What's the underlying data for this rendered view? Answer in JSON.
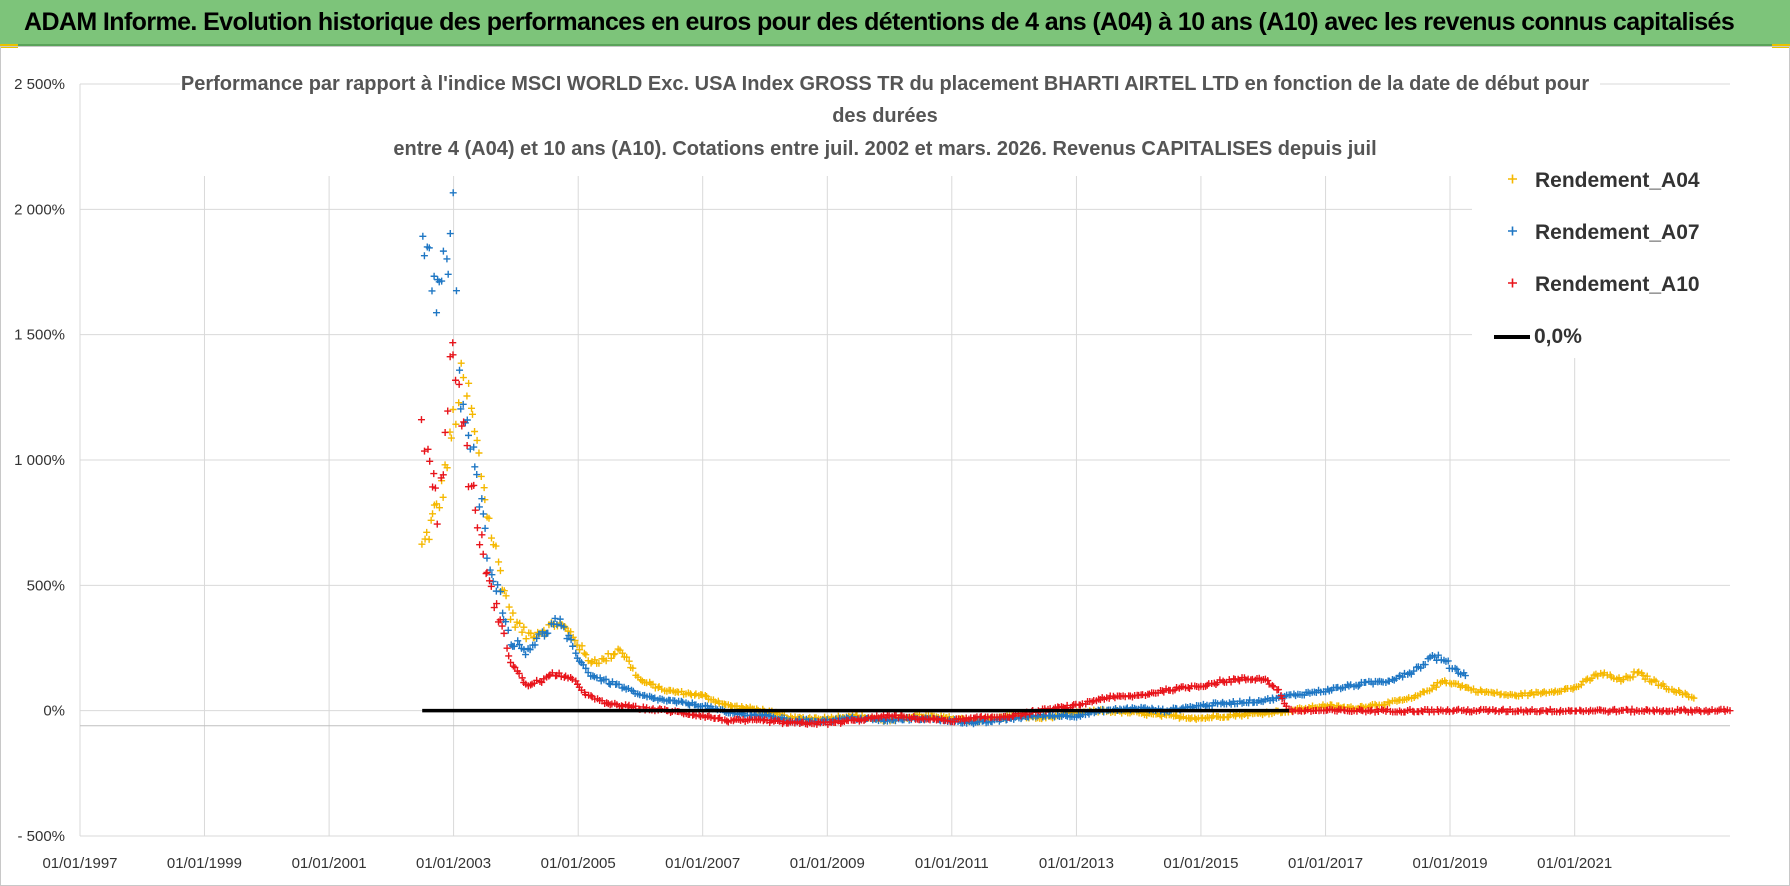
{
  "header": {
    "title": "ADAM Informe. Evolution historique des performances en euros pour des détentions de 4 ans (A04) à 10 ans (A10) avec les revenus connus capitalisés"
  },
  "chart_data": {
    "type": "scatter",
    "title_lines": [
      "Performance par rapport à l'indice MSCI WORLD Exc. USA Index GROSS TR  du placement BHARTI AIRTEL LTD en fonction de la date de début pour",
      "des durées",
      "entre 4 (A04) et 10 ans (A10).  Cotations entre juil. 2002 et mars. 2026. Revenus CAPITALISES depuis juil"
    ],
    "x_tick_labels": [
      "01/01/1997",
      "01/01/1999",
      "01/01/2001",
      "01/01/2003",
      "01/01/2005",
      "01/01/2007",
      "01/01/2009",
      "01/01/2011",
      "01/01/2013",
      "01/01/2015",
      "01/01/2017",
      "01/01/2019",
      "01/01/2021"
    ],
    "x_range": [
      "1997-01-01",
      "2023-07-01"
    ],
    "y_tick_labels": [
      "2 500%",
      "2 000%",
      "1 500%",
      "1 000%",
      "500%",
      "0%",
      "- 500%"
    ],
    "y_range": [
      -500,
      2500
    ],
    "grid": "vertical and horizontal",
    "legend_position": "top-right",
    "series": [
      {
        "name": "Rendement_A04",
        "color": "#f5b800",
        "points": [
          [
            "2002-07-01",
            650
          ],
          [
            "2002-09-01",
            760
          ],
          [
            "2002-11-01",
            900
          ],
          [
            "2003-01-01",
            1150
          ],
          [
            "2003-02-15",
            1300
          ],
          [
            "2003-04-01",
            1250
          ],
          [
            "2003-06-01",
            1000
          ],
          [
            "2003-08-01",
            750
          ],
          [
            "2003-10-01",
            550
          ],
          [
            "2003-12-01",
            380
          ],
          [
            "2004-03-01",
            300
          ],
          [
            "2004-06-01",
            320
          ],
          [
            "2004-09-01",
            350
          ],
          [
            "2004-12-01",
            300
          ],
          [
            "2005-03-01",
            200
          ],
          [
            "2005-06-01",
            200
          ],
          [
            "2005-09-01",
            250
          ],
          [
            "2006-01-01",
            120
          ],
          [
            "2006-06-01",
            80
          ],
          [
            "2007-01-01",
            60
          ],
          [
            "2007-06-01",
            20
          ],
          [
            "2008-01-01",
            0
          ],
          [
            "2008-06-01",
            -30
          ],
          [
            "2009-01-01",
            -30
          ],
          [
            "2009-06-01",
            -20
          ],
          [
            "2010-01-01",
            -40
          ],
          [
            "2010-06-01",
            -20
          ],
          [
            "2011-01-01",
            -30
          ],
          [
            "2011-06-01",
            -40
          ],
          [
            "2012-01-01",
            -20
          ],
          [
            "2012-06-01",
            -30
          ],
          [
            "2013-01-01",
            -10
          ],
          [
            "2013-06-01",
            0
          ],
          [
            "2014-01-01",
            -10
          ],
          [
            "2014-06-01",
            -20
          ],
          [
            "2015-01-01",
            -30
          ],
          [
            "2015-06-01",
            -20
          ],
          [
            "2016-01-01",
            -10
          ],
          [
            "2016-06-01",
            0
          ],
          [
            "2017-01-01",
            20
          ],
          [
            "2017-06-01",
            10
          ],
          [
            "2018-01-01",
            30
          ],
          [
            "2018-06-01",
            50
          ],
          [
            "2018-12-01",
            120
          ],
          [
            "2019-06-01",
            80
          ],
          [
            "2020-01-01",
            60
          ],
          [
            "2020-06-01",
            70
          ],
          [
            "2021-01-01",
            90
          ],
          [
            "2021-06-01",
            150
          ],
          [
            "2021-10-01",
            120
          ],
          [
            "2022-01-01",
            150
          ],
          [
            "2022-06-01",
            100
          ],
          [
            "2022-12-01",
            50
          ]
        ]
      },
      {
        "name": "Rendement_A07",
        "color": "#1f77c4",
        "points": [
          [
            "2002-07-01",
            1950
          ],
          [
            "2002-08-15",
            1800
          ],
          [
            "2002-10-01",
            1650
          ],
          [
            "2002-12-01",
            1800
          ],
          [
            "2003-01-01",
            1950
          ],
          [
            "2003-02-01",
            1300
          ],
          [
            "2003-04-01",
            1100
          ],
          [
            "2003-06-01",
            850
          ],
          [
            "2003-08-01",
            600
          ],
          [
            "2003-10-01",
            450
          ],
          [
            "2003-12-01",
            280
          ],
          [
            "2004-03-01",
            240
          ],
          [
            "2004-06-01",
            300
          ],
          [
            "2004-09-01",
            360
          ],
          [
            "2004-12-01",
            250
          ],
          [
            "2005-03-01",
            150
          ],
          [
            "2005-06-01",
            120
          ],
          [
            "2005-09-01",
            100
          ],
          [
            "2006-01-01",
            60
          ],
          [
            "2006-06-01",
            40
          ],
          [
            "2007-01-01",
            20
          ],
          [
            "2007-06-01",
            -10
          ],
          [
            "2008-01-01",
            -20
          ],
          [
            "2008-06-01",
            -40
          ],
          [
            "2009-01-01",
            -40
          ],
          [
            "2009-06-01",
            -30
          ],
          [
            "2010-01-01",
            -40
          ],
          [
            "2010-06-01",
            -30
          ],
          [
            "2011-01-01",
            -40
          ],
          [
            "2011-06-01",
            -50
          ],
          [
            "2012-01-01",
            -30
          ],
          [
            "2012-06-01",
            -20
          ],
          [
            "2013-01-01",
            -20
          ],
          [
            "2013-06-01",
            0
          ],
          [
            "2014-01-01",
            10
          ],
          [
            "2014-06-01",
            0
          ],
          [
            "2015-01-01",
            20
          ],
          [
            "2015-06-01",
            30
          ],
          [
            "2016-01-01",
            40
          ],
          [
            "2016-06-01",
            60
          ],
          [
            "2017-01-01",
            80
          ],
          [
            "2017-06-01",
            100
          ],
          [
            "2018-01-01",
            120
          ],
          [
            "2018-06-01",
            160
          ],
          [
            "2018-10-01",
            220
          ],
          [
            "2019-01-01",
            180
          ],
          [
            "2019-04-01",
            140
          ]
        ]
      },
      {
        "name": "Rendement_A10",
        "color": "#e8141b",
        "points": [
          [
            "2002-07-01",
            1150
          ],
          [
            "2002-08-15",
            1000
          ],
          [
            "2002-10-01",
            800
          ],
          [
            "2002-11-15",
            1100
          ],
          [
            "2002-12-15",
            1350
          ],
          [
            "2003-01-01",
            1450
          ],
          [
            "2003-02-15",
            1200
          ],
          [
            "2003-04-01",
            950
          ],
          [
            "2003-06-01",
            700
          ],
          [
            "2003-08-01",
            500
          ],
          [
            "2003-10-01",
            350
          ],
          [
            "2003-12-01",
            200
          ],
          [
            "2004-03-01",
            100
          ],
          [
            "2004-06-01",
            120
          ],
          [
            "2004-09-01",
            150
          ],
          [
            "2004-12-01",
            120
          ],
          [
            "2005-03-01",
            60
          ],
          [
            "2005-06-01",
            30
          ],
          [
            "2006-01-01",
            10
          ],
          [
            "2006-06-01",
            0
          ],
          [
            "2007-01-01",
            -20
          ],
          [
            "2007-06-01",
            -40
          ],
          [
            "2008-01-01",
            -40
          ],
          [
            "2008-06-01",
            -50
          ],
          [
            "2009-01-01",
            -50
          ],
          [
            "2009-06-01",
            -40
          ],
          [
            "2010-01-01",
            -20
          ],
          [
            "2010-06-01",
            -30
          ],
          [
            "2011-01-01",
            -40
          ],
          [
            "2011-06-01",
            -30
          ],
          [
            "2012-01-01",
            -20
          ],
          [
            "2012-06-01",
            0
          ],
          [
            "2013-01-01",
            20
          ],
          [
            "2013-06-01",
            50
          ],
          [
            "2014-01-01",
            60
          ],
          [
            "2014-06-01",
            80
          ],
          [
            "2015-01-01",
            100
          ],
          [
            "2015-06-01",
            120
          ],
          [
            "2016-01-01",
            130
          ],
          [
            "2016-04-01",
            80
          ],
          [
            "2016-06-01",
            0
          ],
          [
            "2017-01-01",
            0
          ],
          [
            "2018-01-01",
            0
          ],
          [
            "2019-01-01",
            0
          ],
          [
            "2020-01-01",
            0
          ],
          [
            "2021-01-01",
            0
          ],
          [
            "2022-01-01",
            0
          ],
          [
            "2023-01-01",
            0
          ],
          [
            "2023-07-01",
            0
          ]
        ]
      },
      {
        "name": "0,0%",
        "color": "#000000",
        "line": [
          [
            "2002-07-01",
            0
          ],
          [
            "2016-06-01",
            0
          ]
        ]
      }
    ]
  }
}
